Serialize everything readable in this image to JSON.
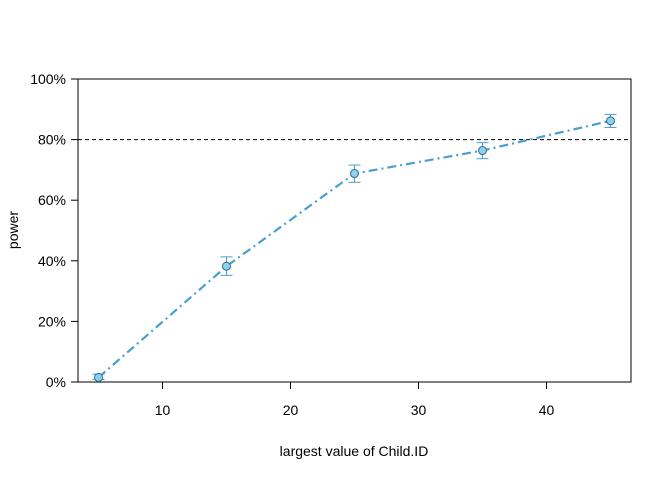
{
  "chart_data": {
    "type": "line",
    "xlabel": "largest value of Child.ID",
    "ylabel": "power",
    "xlim": [
      3.4,
      46.6
    ],
    "ylim": [
      0,
      1
    ],
    "x_ticks": [
      10,
      20,
      30,
      40
    ],
    "x_tick_labels": [
      "10",
      "20",
      "30",
      "40"
    ],
    "y_ticks": [
      0,
      0.2,
      0.4,
      0.6,
      0.8,
      1.0
    ],
    "y_tick_labels": [
      "0%",
      "20%",
      "40%",
      "60%",
      "80%",
      "100%"
    ],
    "reference_line": {
      "y": 0.8,
      "style": "dashed",
      "color": "#000000"
    },
    "series": [
      {
        "x": [
          5,
          15,
          25,
          35,
          45
        ],
        "y": [
          0.015,
          0.382,
          0.688,
          0.764,
          0.862
        ],
        "ci_lower": [
          0.008,
          0.352,
          0.659,
          0.737,
          0.84
        ],
        "ci_upper": [
          0.026,
          0.413,
          0.716,
          0.79,
          0.883
        ],
        "color": "#4a9fd0",
        "marker_fill": "#8fd0ea",
        "line_style": "dash-dot"
      }
    ],
    "grid": false,
    "legend": "none"
  }
}
